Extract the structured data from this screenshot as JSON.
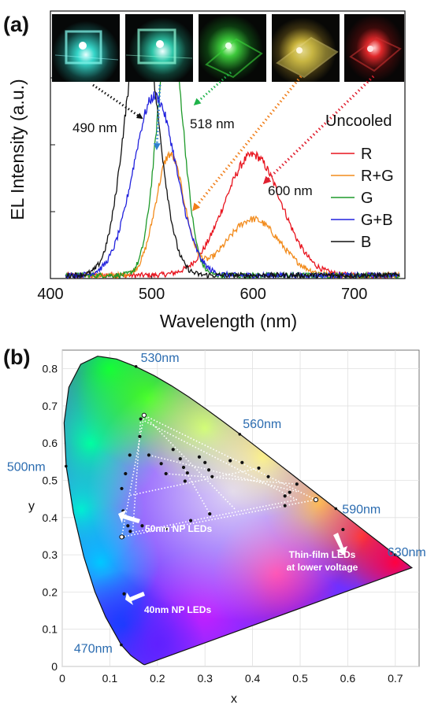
{
  "colors": {
    "R": "#e8141e",
    "RG": "#f28b1c",
    "G": "#1e9a2a",
    "GB": "#2222dd",
    "B": "#111111",
    "wl_label": "#2b6cb0"
  },
  "chart_data": [
    {
      "type": "line",
      "panel_label": "(a)",
      "xlabel": "Wavelength (nm)",
      "ylabel": "EL Intensity (a.u.)",
      "xlim": [
        400,
        750
      ],
      "ylim": [
        0,
        1.0
      ],
      "x_ticks": [
        400,
        500,
        600,
        700
      ],
      "y_tick_labels_shown": false,
      "legend_title": "Uncooled",
      "legend_position": "right",
      "annotations": [
        "490 nm",
        "518 nm",
        "600 nm"
      ],
      "series": [
        {
          "name": "R",
          "color": "#e8141e",
          "peaks": [
            {
              "center": 600,
              "height": 0.45,
              "width": 28
            }
          ]
        },
        {
          "name": "R+G",
          "color": "#f28b1c",
          "peaks": [
            {
              "center": 518,
              "height": 0.45,
              "width": 14
            },
            {
              "center": 600,
              "height": 0.21,
              "width": 26
            }
          ]
        },
        {
          "name": "G",
          "color": "#1e9a2a",
          "peaks": [
            {
              "center": 518,
              "height": 0.93,
              "width": 13
            }
          ]
        },
        {
          "name": "G+B",
          "color": "#2222dd",
          "peaks": [
            {
              "center": 503,
              "height": 0.67,
              "width": 21
            }
          ]
        },
        {
          "name": "B",
          "color": "#111111",
          "peaks": [
            {
              "center": 490,
              "height": 0.94,
              "width": 17
            }
          ]
        }
      ]
    },
    {
      "type": "scatter",
      "panel_label": "(b)",
      "xlabel": "x",
      "ylabel": "y",
      "xlim": [
        0,
        0.75
      ],
      "ylim": [
        0,
        0.85
      ],
      "x_ticks": [
        0,
        0.1,
        0.2,
        0.3,
        0.4,
        0.5,
        0.6,
        0.7
      ],
      "y_ticks": [
        0,
        0.1,
        0.2,
        0.3,
        0.4,
        0.5,
        0.6,
        0.7,
        0.8
      ],
      "grid": true,
      "wavelength_labels": [
        {
          "label": "470nm",
          "x": 0.124,
          "y": 0.058
        },
        {
          "label": "500nm",
          "x": 0.008,
          "y": 0.538
        },
        {
          "label": "530nm",
          "x": 0.155,
          "y": 0.806
        },
        {
          "label": "560nm",
          "x": 0.373,
          "y": 0.624
        },
        {
          "label": "590nm",
          "x": 0.575,
          "y": 0.424
        },
        {
          "label": "630nm",
          "x": 0.7,
          "y": 0.3
        }
      ],
      "annotations": [
        "50nm NP LEDs",
        "Thin-film LEDs",
        "at lower voltage",
        "40nm NP LEDs"
      ],
      "points": [
        {
          "x": 0.172,
          "y": 0.675
        },
        {
          "x": 0.165,
          "y": 0.665
        },
        {
          "x": 0.163,
          "y": 0.618
        },
        {
          "x": 0.142,
          "y": 0.568
        },
        {
          "x": 0.133,
          "y": 0.518
        },
        {
          "x": 0.125,
          "y": 0.478
        },
        {
          "x": 0.128,
          "y": 0.418
        },
        {
          "x": 0.138,
          "y": 0.378
        },
        {
          "x": 0.128,
          "y": 0.348
        },
        {
          "x": 0.143,
          "y": 0.363
        },
        {
          "x": 0.168,
          "y": 0.378
        },
        {
          "x": 0.218,
          "y": 0.37
        },
        {
          "x": 0.27,
          "y": 0.392
        },
        {
          "x": 0.31,
          "y": 0.41
        },
        {
          "x": 0.182,
          "y": 0.568
        },
        {
          "x": 0.208,
          "y": 0.545
        },
        {
          "x": 0.218,
          "y": 0.518
        },
        {
          "x": 0.233,
          "y": 0.583
        },
        {
          "x": 0.248,
          "y": 0.558
        },
        {
          "x": 0.255,
          "y": 0.535
        },
        {
          "x": 0.263,
          "y": 0.52
        },
        {
          "x": 0.258,
          "y": 0.498
        },
        {
          "x": 0.288,
          "y": 0.563
        },
        {
          "x": 0.3,
          "y": 0.548
        },
        {
          "x": 0.308,
          "y": 0.528
        },
        {
          "x": 0.315,
          "y": 0.51
        },
        {
          "x": 0.353,
          "y": 0.553
        },
        {
          "x": 0.378,
          "y": 0.548
        },
        {
          "x": 0.413,
          "y": 0.533
        },
        {
          "x": 0.433,
          "y": 0.51
        },
        {
          "x": 0.478,
          "y": 0.468
        },
        {
          "x": 0.493,
          "y": 0.49
        },
        {
          "x": 0.468,
          "y": 0.458
        },
        {
          "x": 0.468,
          "y": 0.432
        },
        {
          "x": 0.533,
          "y": 0.448
        },
        {
          "x": 0.59,
          "y": 0.368
        },
        {
          "x": 0.13,
          "y": 0.195
        }
      ]
    }
  ]
}
